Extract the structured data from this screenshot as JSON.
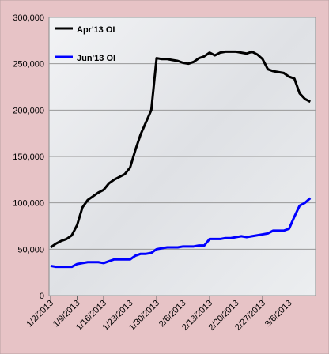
{
  "chart_data": {
    "type": "line",
    "categories": [
      "1/2/2013",
      null,
      null,
      null,
      null,
      "1/9/2013",
      null,
      null,
      null,
      null,
      "1/16/2013",
      null,
      null,
      null,
      null,
      "1/23/2013",
      null,
      null,
      null,
      null,
      "1/30/2013",
      null,
      null,
      null,
      null,
      "2/6/2013",
      null,
      null,
      null,
      null,
      "2/13/2013",
      null,
      null,
      null,
      null,
      "2/20/2013",
      null,
      null,
      null,
      null,
      "2/27/2013",
      null,
      null,
      null,
      null,
      "3/6/2013",
      null,
      null,
      null,
      null
    ],
    "series": [
      {
        "name": "Apr'13 OI",
        "color": "#000000",
        "values": [
          52000,
          56000,
          59000,
          61000,
          65000,
          76000,
          95000,
          103000,
          107000,
          111000,
          114000,
          121000,
          125000,
          128000,
          131000,
          138000,
          157000,
          174000,
          187000,
          200000,
          256000,
          255000,
          255000,
          254000,
          253000,
          251000,
          250000,
          252000,
          256000,
          258000,
          262000,
          259000,
          262000,
          263000,
          263000,
          263000,
          262000,
          261000,
          263000,
          260000,
          255000,
          244000,
          242000,
          241000,
          240000,
          236000,
          234000,
          218000,
          212000,
          209000
        ]
      },
      {
        "name": "Jun'13 OI",
        "color": "#0000ff",
        "values": [
          32000,
          31000,
          31000,
          31000,
          31000,
          34000,
          35000,
          36000,
          36000,
          36000,
          35000,
          37000,
          39000,
          39000,
          39000,
          39000,
          43000,
          45000,
          45000,
          46000,
          50000,
          51000,
          52000,
          52000,
          52000,
          53000,
          53000,
          53000,
          54000,
          54000,
          61000,
          61000,
          61000,
          62000,
          62000,
          63000,
          64000,
          63000,
          64000,
          65000,
          66000,
          67000,
          70000,
          70000,
          70000,
          72000,
          85000,
          97000,
          100000,
          105000
        ]
      }
    ],
    "ylim": [
      0,
      300000
    ],
    "yticks": [
      0,
      {
        "value": 50000,
        "label": "50,000"
      },
      {
        "value": 100000,
        "label": "100,000"
      },
      {
        "value": 150000,
        "label": "150,000"
      },
      {
        "value": 200000,
        "label": "200,000"
      },
      {
        "value": 250000,
        "label": "250,000"
      },
      {
        "value": 300000,
        "label": "300,000"
      }
    ],
    "grid": true,
    "legend": "top-left"
  }
}
